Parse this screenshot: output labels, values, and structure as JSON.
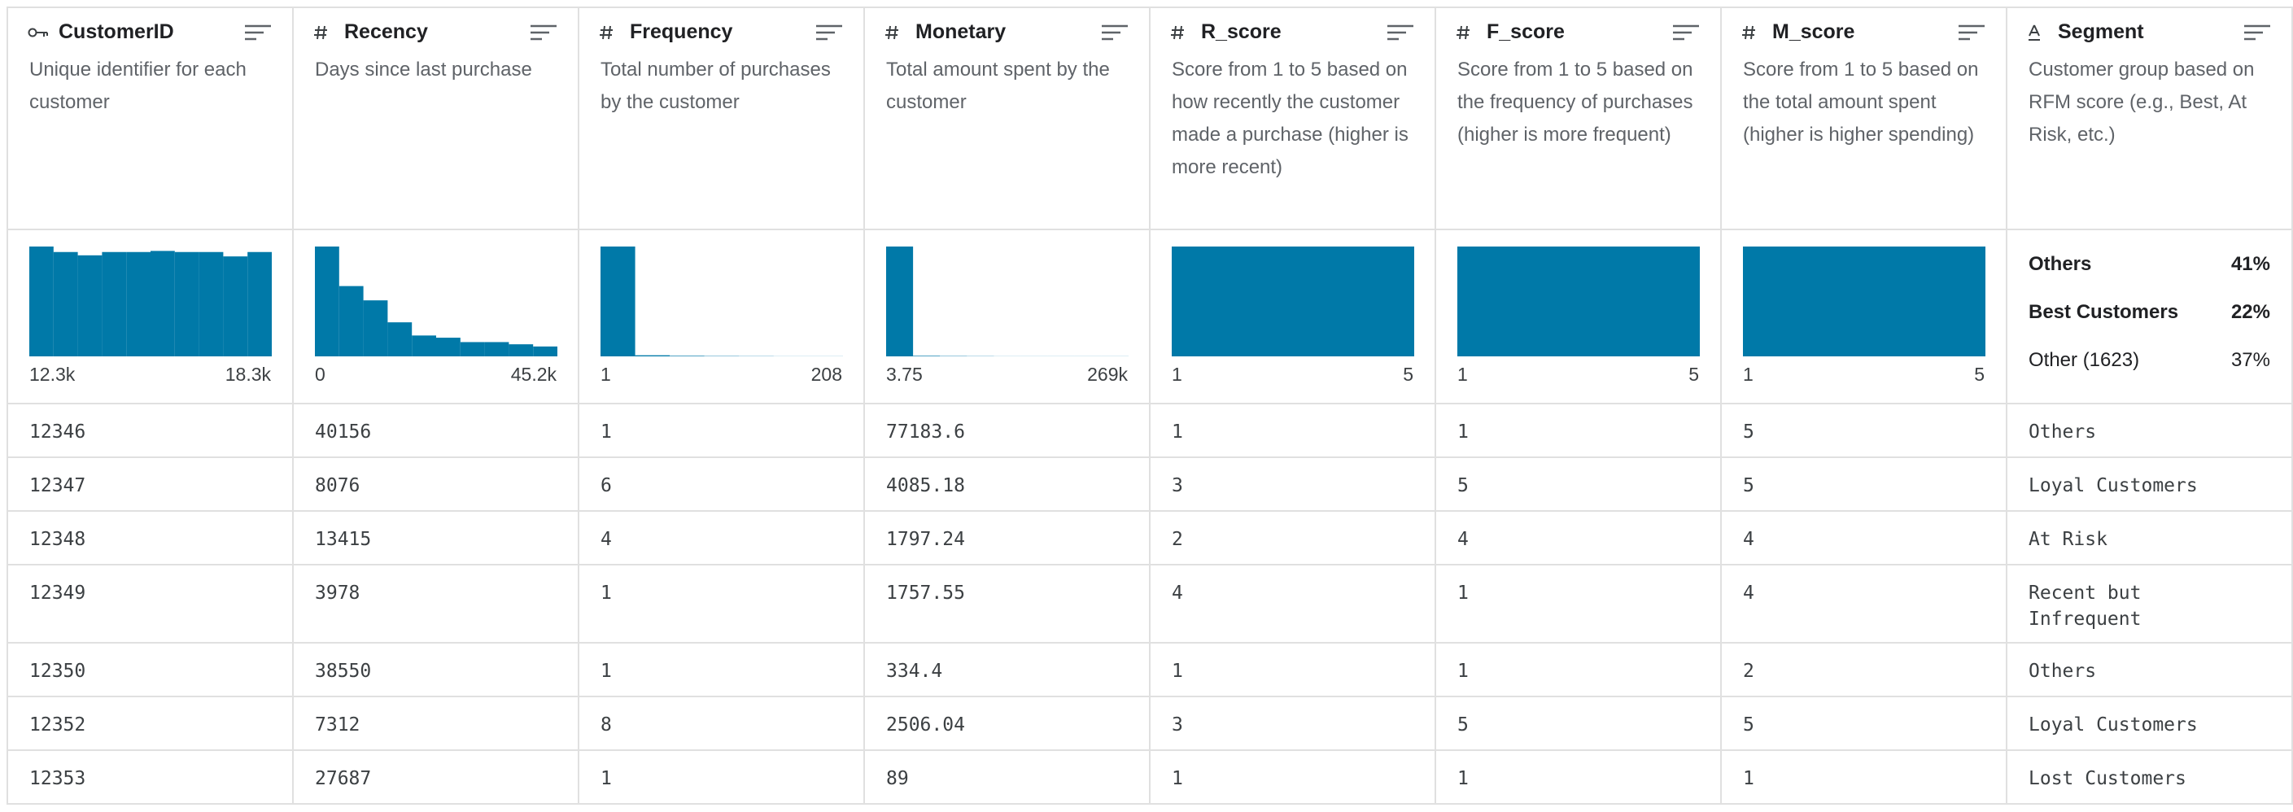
{
  "columns": [
    {
      "name": "CustomerID",
      "kind": "id",
      "description": "Unique identifier for each customer",
      "histogram": [
        100,
        95,
        92,
        95,
        95,
        96,
        95,
        95,
        91,
        95
      ],
      "min": "12.3k",
      "max": "18.3k"
    },
    {
      "name": "Recency",
      "kind": "numeric",
      "description": "Days since last purchase",
      "histogram": [
        100,
        64,
        51,
        31,
        19,
        17,
        13,
        13,
        11,
        9
      ],
      "min": "0",
      "max": "45.2k"
    },
    {
      "name": "Frequency",
      "kind": "numeric",
      "description": "Total number of purchases by the customer",
      "histogram": [
        100,
        1,
        0.5,
        0.3,
        0.2,
        0.1,
        0.1
      ],
      "min": "1",
      "max": "208"
    },
    {
      "name": "Monetary",
      "kind": "numeric",
      "description": "Total amount spent by the customer",
      "histogram": [
        100,
        0.5,
        0.3,
        0.2,
        0.1,
        0.1,
        0.1,
        0.1,
        0.1
      ],
      "min": "3.75",
      "max": "269k"
    },
    {
      "name": "R_score",
      "kind": "numeric",
      "description": "Score from 1 to 5 based on how recently the customer made a purchase (higher is more recent)",
      "histogram": [
        100
      ],
      "min": "1",
      "max": "5"
    },
    {
      "name": "F_score",
      "kind": "numeric",
      "description": "Score from 1 to 5 based on the frequency of purchases (higher is more frequent)",
      "histogram": [
        100
      ],
      "min": "1",
      "max": "5"
    },
    {
      "name": "M_score",
      "kind": "numeric",
      "description": "Score from 1 to 5 based on the total amount spent (higher is higher spending)",
      "histogram": [
        100
      ],
      "min": "1",
      "max": "5"
    },
    {
      "name": "Segment",
      "kind": "string",
      "description": "Customer group based on RFM score (e.g., Best, At Risk, etc.)",
      "top_values": [
        {
          "name": "Others",
          "value": 41,
          "label": "41%"
        },
        {
          "name": "Best Customers",
          "value": 22,
          "label": "22%"
        },
        {
          "name": "Other (1623)",
          "value": 37,
          "label": "37%"
        }
      ]
    }
  ],
  "rows": [
    [
      12346,
      40156,
      1,
      77183.6,
      1,
      1,
      5,
      "Others"
    ],
    [
      12347,
      8076,
      6,
      4085.18,
      3,
      5,
      5,
      "Loyal Customers"
    ],
    [
      12348,
      13415,
      4,
      1797.24,
      2,
      4,
      4,
      "At Risk"
    ],
    [
      12349,
      3978,
      1,
      1757.55,
      4,
      1,
      4,
      "Recent but Infrequent"
    ],
    [
      12350,
      38550,
      1,
      334.4,
      1,
      1,
      2,
      "Others"
    ],
    [
      12352,
      7312,
      8,
      2506.04,
      3,
      5,
      5,
      "Loyal Customers"
    ],
    [
      12353,
      27687,
      1,
      89,
      1,
      1,
      1,
      "Lost Customers"
    ]
  ]
}
